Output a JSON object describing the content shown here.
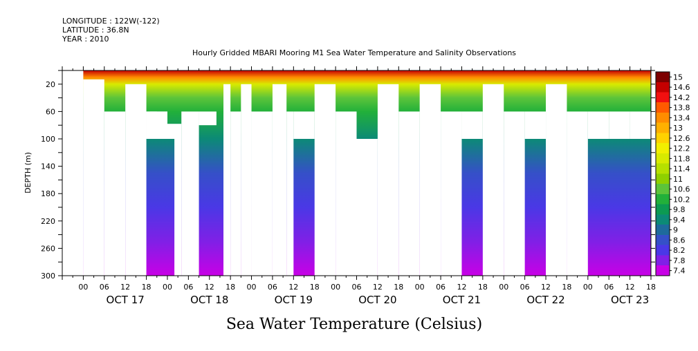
{
  "header": {
    "longitude": "LONGITUDE : 122W(-122)",
    "latitude": "LATITUDE : 36.8N",
    "year": "YEAR : 2010"
  },
  "chart_data": {
    "type": "heatmap",
    "title": "Hourly Gridded MBARI Mooring M1 Sea Water Temperature and Salinity Observations",
    "xlabel": "",
    "ylabel": "DEPTH (m)",
    "bottom_title": "Sea Water Temperature (Celsius)",
    "x_hour_range": [
      -6,
      162
    ],
    "x_days": [
      "OCT 17",
      "OCT 18",
      "OCT 19",
      "OCT 20",
      "OCT 21",
      "OCT 22",
      "OCT 23"
    ],
    "x_hour_ticks": [
      "00",
      "06",
      "12",
      "18",
      "00",
      "06",
      "12",
      "18",
      "00",
      "06",
      "12",
      "18",
      "00",
      "06",
      "12",
      "18",
      "00",
      "06",
      "12",
      "18",
      "00",
      "06",
      "12",
      "18",
      "00",
      "06",
      "12",
      "18"
    ],
    "ylim": [
      300,
      0
    ],
    "y_ticks": [
      20,
      60,
      100,
      140,
      180,
      220,
      260,
      300
    ],
    "colorbar_levels": [
      "15",
      "14.6",
      "14.2",
      "13.8",
      "13.4",
      "13",
      "12.6",
      "12.2",
      "11.8",
      "11.4",
      "11",
      "10.6",
      "10.2",
      "9.8",
      "9.4",
      "9",
      "8.6",
      "8.2",
      "7.8",
      "7.4"
    ],
    "colorbar_colors": [
      "#7d0000",
      "#c40000",
      "#f21010",
      "#ff5a00",
      "#ff8c00",
      "#ffb000",
      "#ffd200",
      "#f2ef00",
      "#d8ea00",
      "#b6e000",
      "#8fd000",
      "#5cc43a",
      "#22b03a",
      "#0c9a52",
      "#0c8a76",
      "#1e6a9c",
      "#3550c8",
      "#4a38e6",
      "#8020e6",
      "#c800e6"
    ],
    "depths": [
      10,
      20,
      40,
      60,
      100,
      150,
      200,
      250,
      300
    ],
    "temperature_profile": [
      13.6,
      12.0,
      10.6,
      10.3,
      9.4,
      8.8,
      8.4,
      8.0,
      7.6
    ],
    "data_gaps": [
      {
        "hours": [
          -6,
          0
        ],
        "depths": [
          0,
          300
        ]
      },
      {
        "hours": [
          0,
          6
        ],
        "depths": [
          13,
          300
        ]
      },
      {
        "hours": [
          6,
          12
        ],
        "depths": [
          60,
          300
        ]
      },
      {
        "hours": [
          12,
          18
        ],
        "depths": [
          20,
          300
        ]
      },
      {
        "hours": [
          18,
          24
        ],
        "depths": [
          60,
          100
        ]
      },
      {
        "hours": [
          18,
          24
        ],
        "depths": [
          60,
          100
        ]
      },
      {
        "hours": [
          19,
          21
        ],
        "depths": [
          60,
          100
        ]
      },
      {
        "hours": [
          21,
          28
        ],
        "depths": [
          78,
          100
        ]
      },
      {
        "hours": [
          26,
          28
        ],
        "depths": [
          100,
          300
        ]
      },
      {
        "hours": [
          28,
          33
        ],
        "depths": [
          60,
          300
        ]
      },
      {
        "hours": [
          33,
          38
        ],
        "depths": [
          60,
          80
        ]
      },
      {
        "hours": [
          40,
          42
        ],
        "depths": [
          20,
          300
        ]
      },
      {
        "hours": [
          42,
          45
        ],
        "depths": [
          60,
          300
        ]
      },
      {
        "hours": [
          45,
          48
        ],
        "depths": [
          20,
          300
        ]
      },
      {
        "hours": [
          48,
          54
        ],
        "depths": [
          60,
          300
        ]
      },
      {
        "hours": [
          54,
          58
        ],
        "depths": [
          20,
          300
        ]
      },
      {
        "hours": [
          58,
          60
        ],
        "depths": [
          60,
          300
        ]
      },
      {
        "hours": [
          60,
          66
        ],
        "depths": [
          60,
          100
        ]
      },
      {
        "hours": [
          66,
          72
        ],
        "depths": [
          20,
          300
        ]
      },
      {
        "hours": [
          72,
          78
        ],
        "depths": [
          60,
          300
        ]
      },
      {
        "hours": [
          78,
          84
        ],
        "depths": [
          100,
          300
        ]
      },
      {
        "hours": [
          84,
          90
        ],
        "depths": [
          20,
          300
        ]
      },
      {
        "hours": [
          90,
          96
        ],
        "depths": [
          60,
          300
        ]
      },
      {
        "hours": [
          96,
          102
        ],
        "depths": [
          20,
          300
        ]
      },
      {
        "hours": [
          102,
          108
        ],
        "depths": [
          60,
          300
        ]
      },
      {
        "hours": [
          108,
          114
        ],
        "depths": [
          60,
          100
        ]
      },
      {
        "hours": [
          114,
          120
        ],
        "depths": [
          20,
          300
        ]
      },
      {
        "hours": [
          120,
          126
        ],
        "depths": [
          60,
          300
        ]
      },
      {
        "hours": [
          126,
          132
        ],
        "depths": [
          60,
          100
        ]
      },
      {
        "hours": [
          132,
          138
        ],
        "depths": [
          20,
          300
        ]
      },
      {
        "hours": [
          138,
          144
        ],
        "depths": [
          60,
          300
        ]
      },
      {
        "hours": [
          144,
          150
        ],
        "depths": [
          60,
          100
        ]
      },
      {
        "hours": [
          150,
          156
        ],
        "depths": [
          60,
          100
        ]
      },
      {
        "hours": [
          156,
          162
        ],
        "depths": [
          60,
          100
        ]
      }
    ]
  }
}
